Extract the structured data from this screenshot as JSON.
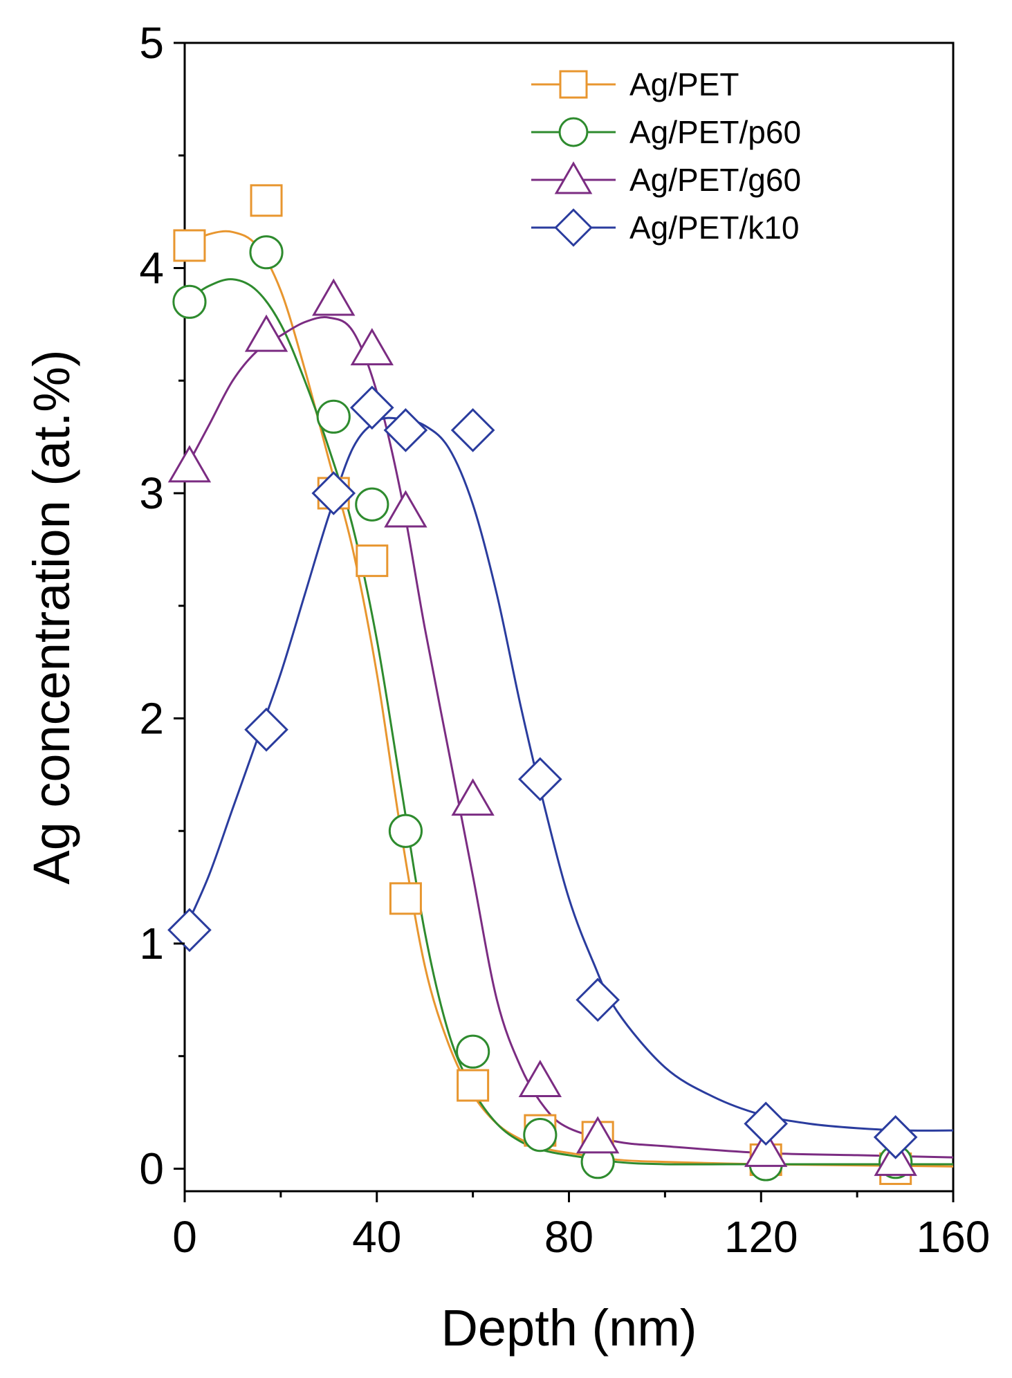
{
  "chart_data": {
    "type": "scatter",
    "title": "",
    "xlabel": "Depth (nm)",
    "ylabel": "Ag concentration (at.%)",
    "xlim": [
      0,
      160
    ],
    "ylim": [
      -0.1,
      5
    ],
    "xticks": [
      0,
      40,
      80,
      120,
      160
    ],
    "xtick_labels": [
      "0",
      "40",
      "80",
      "120",
      "160"
    ],
    "yticks": [
      0,
      1,
      2,
      3,
      4,
      5
    ],
    "ytick_labels": [
      "0",
      "1",
      "2",
      "3",
      "4",
      "5"
    ],
    "grid": false,
    "legend_position": "top-right",
    "series": [
      {
        "name": "Ag/PET",
        "marker": "square",
        "color": "#E8962F",
        "points": [
          [
            1,
            4.1
          ],
          [
            17,
            4.3
          ],
          [
            31,
            3.0
          ],
          [
            39,
            2.7
          ],
          [
            46,
            1.2
          ],
          [
            60,
            0.37
          ],
          [
            74,
            0.17
          ],
          [
            86,
            0.14
          ],
          [
            121,
            0.04
          ],
          [
            148,
            0.0
          ]
        ],
        "fit": [
          [
            0,
            4.1
          ],
          [
            5,
            4.15
          ],
          [
            10,
            4.16
          ],
          [
            15,
            4.1
          ],
          [
            20,
            3.9
          ],
          [
            25,
            3.55
          ],
          [
            30,
            3.15
          ],
          [
            35,
            2.75
          ],
          [
            40,
            2.2
          ],
          [
            45,
            1.5
          ],
          [
            50,
            0.9
          ],
          [
            55,
            0.55
          ],
          [
            60,
            0.33
          ],
          [
            65,
            0.2
          ],
          [
            70,
            0.13
          ],
          [
            75,
            0.09
          ],
          [
            80,
            0.07
          ],
          [
            90,
            0.04
          ],
          [
            100,
            0.03
          ],
          [
            120,
            0.02
          ],
          [
            140,
            0.015
          ],
          [
            160,
            0.01
          ]
        ]
      },
      {
        "name": "Ag/PET/p60",
        "marker": "circle",
        "color": "#2E8B2E",
        "points": [
          [
            1,
            3.85
          ],
          [
            17,
            4.07
          ],
          [
            31,
            3.34
          ],
          [
            39,
            2.95
          ],
          [
            46,
            1.5
          ],
          [
            60,
            0.52
          ],
          [
            74,
            0.15
          ],
          [
            86,
            0.03
          ],
          [
            121,
            0.02
          ],
          [
            148,
            0.03
          ]
        ],
        "fit": [
          [
            0,
            3.85
          ],
          [
            5,
            3.92
          ],
          [
            10,
            3.95
          ],
          [
            15,
            3.9
          ],
          [
            20,
            3.75
          ],
          [
            25,
            3.5
          ],
          [
            30,
            3.2
          ],
          [
            35,
            2.85
          ],
          [
            40,
            2.35
          ],
          [
            45,
            1.7
          ],
          [
            50,
            1.05
          ],
          [
            55,
            0.6
          ],
          [
            60,
            0.35
          ],
          [
            65,
            0.2
          ],
          [
            70,
            0.12
          ],
          [
            75,
            0.08
          ],
          [
            80,
            0.06
          ],
          [
            90,
            0.03
          ],
          [
            100,
            0.02
          ],
          [
            120,
            0.02
          ],
          [
            140,
            0.02
          ],
          [
            160,
            0.02
          ]
        ]
      },
      {
        "name": "Ag/PET/g60",
        "marker": "triangle",
        "color": "#7B2C82",
        "points": [
          [
            1,
            3.12
          ],
          [
            17,
            3.7
          ],
          [
            31,
            3.86
          ],
          [
            39,
            3.64
          ],
          [
            46,
            2.92
          ],
          [
            60,
            1.64
          ],
          [
            74,
            0.39
          ],
          [
            86,
            0.14
          ],
          [
            121,
            0.08
          ],
          [
            148,
            0.04
          ]
        ],
        "fit": [
          [
            0,
            3.1
          ],
          [
            5,
            3.3
          ],
          [
            10,
            3.5
          ],
          [
            15,
            3.63
          ],
          [
            20,
            3.7
          ],
          [
            25,
            3.76
          ],
          [
            30,
            3.78
          ],
          [
            35,
            3.72
          ],
          [
            40,
            3.45
          ],
          [
            45,
            3.0
          ],
          [
            50,
            2.4
          ],
          [
            55,
            1.85
          ],
          [
            60,
            1.3
          ],
          [
            65,
            0.75
          ],
          [
            70,
            0.45
          ],
          [
            75,
            0.27
          ],
          [
            80,
            0.18
          ],
          [
            90,
            0.12
          ],
          [
            100,
            0.1
          ],
          [
            120,
            0.07
          ],
          [
            140,
            0.06
          ],
          [
            160,
            0.05
          ]
        ]
      },
      {
        "name": "Ag/PET/k10",
        "marker": "diamond",
        "color": "#2A3C9E",
        "points": [
          [
            1,
            1.06
          ],
          [
            17,
            1.95
          ],
          [
            31,
            3.0
          ],
          [
            39,
            3.38
          ],
          [
            46,
            3.28
          ],
          [
            60,
            3.28
          ],
          [
            74,
            1.73
          ],
          [
            86,
            0.75
          ],
          [
            121,
            0.2
          ],
          [
            148,
            0.14
          ]
        ],
        "fit": [
          [
            0,
            1.06
          ],
          [
            5,
            1.3
          ],
          [
            10,
            1.6
          ],
          [
            15,
            1.9
          ],
          [
            20,
            2.2
          ],
          [
            25,
            2.55
          ],
          [
            30,
            2.9
          ],
          [
            35,
            3.2
          ],
          [
            40,
            3.32
          ],
          [
            45,
            3.33
          ],
          [
            50,
            3.3
          ],
          [
            55,
            3.2
          ],
          [
            60,
            2.95
          ],
          [
            65,
            2.55
          ],
          [
            70,
            2.05
          ],
          [
            75,
            1.6
          ],
          [
            80,
            1.2
          ],
          [
            85,
            0.92
          ],
          [
            90,
            0.7
          ],
          [
            100,
            0.45
          ],
          [
            110,
            0.32
          ],
          [
            120,
            0.24
          ],
          [
            130,
            0.2
          ],
          [
            140,
            0.18
          ],
          [
            150,
            0.17
          ],
          [
            160,
            0.17
          ]
        ]
      }
    ]
  }
}
